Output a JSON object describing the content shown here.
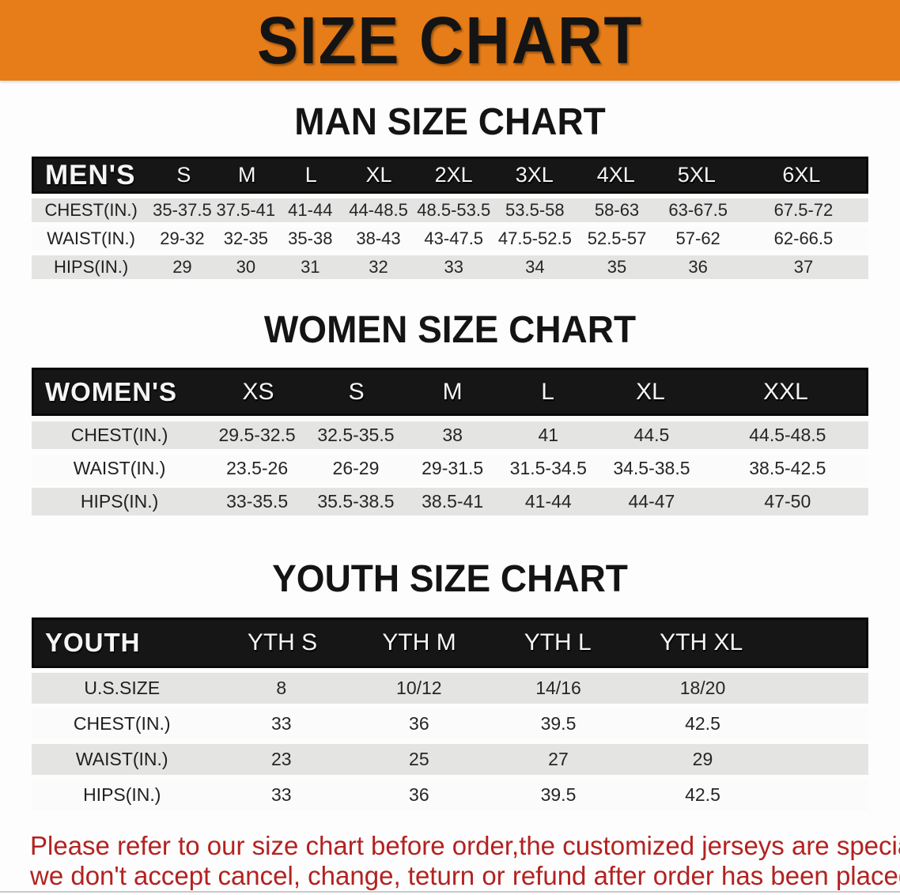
{
  "banner": {
    "title": "SIZE CHART",
    "bg_color": "#e67d18"
  },
  "men": {
    "heading": "MAN SIZE CHART",
    "corner": "MEN'S",
    "columns": [
      "S",
      "M",
      "L",
      "XL",
      "2XL",
      "3XL",
      "4XL",
      "5XL",
      "6XL"
    ],
    "rows": [
      {
        "label": "CHEST(IN.)",
        "values": [
          "35-37.5",
          "37.5-41",
          "41-44",
          "44-48.5",
          "48.5-53.5",
          "53.5-58",
          "58-63",
          "63-67.5",
          "67.5-72"
        ]
      },
      {
        "label": "WAIST(IN.)",
        "values": [
          "29-32",
          "32-35",
          "35-38",
          "38-43",
          "43-47.5",
          "47.5-52.5",
          "52.5-57",
          "57-62",
          "62-66.5"
        ]
      },
      {
        "label": "HIPS(IN.)",
        "values": [
          "29",
          "30",
          "31",
          "32",
          "33",
          "34",
          "35",
          "36",
          "37"
        ]
      }
    ]
  },
  "women": {
    "heading": "WOMEN SIZE CHART",
    "corner": "WOMEN'S",
    "columns": [
      "XS",
      "S",
      "M",
      "L",
      "XL",
      "XXL"
    ],
    "rows": [
      {
        "label": "CHEST(IN.)",
        "values": [
          "29.5-32.5",
          "32.5-35.5",
          "38",
          "41",
          "44.5",
          "44.5-48.5"
        ]
      },
      {
        "label": "WAIST(IN.)",
        "values": [
          "23.5-26",
          "26-29",
          "29-31.5",
          "31.5-34.5",
          "34.5-38.5",
          "38.5-42.5"
        ]
      },
      {
        "label": "HIPS(IN.)",
        "values": [
          "33-35.5",
          "35.5-38.5",
          "38.5-41",
          "41-44",
          "44-47",
          "47-50"
        ]
      }
    ]
  },
  "youth": {
    "heading": "YOUTH SIZE CHART",
    "corner": "YOUTH",
    "columns": [
      "YTH S",
      "YTH M",
      "YTH L",
      "YTH XL"
    ],
    "rows": [
      {
        "label": "U.S.SIZE",
        "values": [
          "8",
          "10/12",
          "14/16",
          "18/20"
        ]
      },
      {
        "label": "CHEST(IN.)",
        "values": [
          "33",
          "36",
          "39.5",
          "42.5"
        ]
      },
      {
        "label": "WAIST(IN.)",
        "values": [
          "23",
          "25",
          "27",
          "29"
        ]
      },
      {
        "label": "HIPS(IN.)",
        "values": [
          "33",
          "36",
          "39.5",
          "42.5"
        ]
      }
    ]
  },
  "footnote": {
    "line1": "Please refer to our size chart before order,the customized jerseys are special products,",
    "line2": "we don't accept cancel, change, teturn or refund after order has been placed!",
    "color": "#b22221"
  }
}
